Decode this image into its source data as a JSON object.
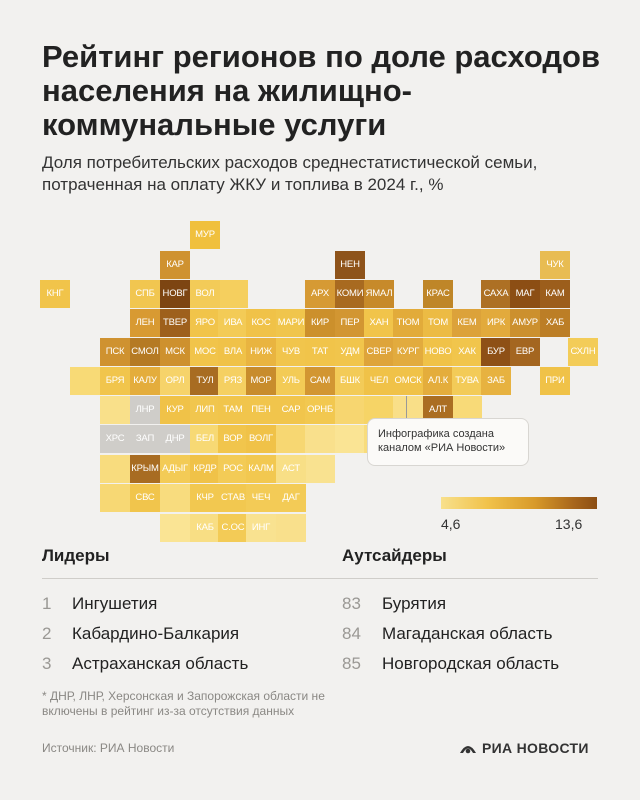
{
  "title": "Рейтинг регионов по доле расходов населения на жилищно-коммунальные услуги",
  "subtitle": "Доля потребительских расходов среднестатистической семьи, потраченная на оплату ЖКУ и топлива в 2024 г., %",
  "credit": "Инфографика создана каналом «РИА Новости»",
  "legend": {
    "min": "4,6",
    "max": "13,6",
    "colors": [
      "#f8e08c",
      "#f1c24a",
      "#d89a2a",
      "#a8661c",
      "#8c4e14"
    ]
  },
  "map_regions": [
    {
      "label": "МУР",
      "color": "#f0c03e"
    },
    {
      "label": "КАР",
      "color": "#cf9230"
    },
    {
      "label": "ЧУК",
      "color": "#e8bc52"
    },
    {
      "label": "НЕН",
      "color": "#8e531a"
    },
    {
      "label": "КНГ",
      "color": "#f1c44a"
    },
    {
      "label": "СПБ",
      "color": "#f1c650"
    },
    {
      "label": "НОВГ",
      "color": "#7d4512"
    },
    {
      "label": "ВОЛ",
      "color": "#f3cb58"
    },
    {
      "label": "АРХ",
      "color": "#d69a34"
    },
    {
      "label": "КОМИ",
      "color": "#a86a20"
    },
    {
      "label": "ЯМАЛ",
      "color": "#c78a2a"
    },
    {
      "label": "КРАС",
      "color": "#bf8628"
    },
    {
      "label": "САХА",
      "color": "#ad7024"
    },
    {
      "label": "МАГ",
      "color": "#8c4e14"
    },
    {
      "label": "КАМ",
      "color": "#9c5e1c"
    },
    {
      "label": "ЛЕН",
      "color": "#d89a32"
    },
    {
      "label": "ТВЕР",
      "color": "#9e601c"
    },
    {
      "label": "ЯРО",
      "color": "#f1c44a"
    },
    {
      "label": "ИВА",
      "color": "#f3cb56"
    },
    {
      "label": "КОС",
      "color": "#f0c248"
    },
    {
      "label": "МАРИ",
      "color": "#f0c54c"
    },
    {
      "label": "КИР",
      "color": "#cc902c"
    },
    {
      "label": "ПЕР",
      "color": "#d29632"
    },
    {
      "label": "ХАН",
      "color": "#f1c44a"
    },
    {
      "label": "ТЮМ",
      "color": "#e2ab3a"
    },
    {
      "label": "ТОМ",
      "color": "#ecbb44"
    },
    {
      "label": "КЕМ",
      "color": "#dca23a"
    },
    {
      "label": "ИРК",
      "color": "#e2aa3c"
    },
    {
      "label": "АМУР",
      "color": "#cc902e"
    },
    {
      "label": "ХАБ",
      "color": "#bc7e26"
    },
    {
      "label": "ПСК",
      "color": "#cf9230"
    },
    {
      "label": "СМОЛ",
      "color": "#b57a24"
    },
    {
      "label": "МСК",
      "color": "#ce912e"
    },
    {
      "label": "МОС",
      "color": "#f1c44a"
    },
    {
      "label": "ВЛА",
      "color": "#f0c248"
    },
    {
      "label": "НИЖ",
      "color": "#e9b440"
    },
    {
      "label": "ЧУВ",
      "color": "#f1c54c"
    },
    {
      "label": "ТАТ",
      "color": "#f1c44a"
    },
    {
      "label": "УДМ",
      "color": "#f1c54c"
    },
    {
      "label": "СВЕР",
      "color": "#dea43a"
    },
    {
      "label": "КУРГ",
      "color": "#e2ab3e"
    },
    {
      "label": "НОВО",
      "color": "#f0c248"
    },
    {
      "label": "ХАК",
      "color": "#f1c54c"
    },
    {
      "label": "БУР",
      "color": "#8e5016"
    },
    {
      "label": "ЕВР",
      "color": "#a46620"
    },
    {
      "label": "СХЛН",
      "color": "#f3cc58"
    },
    {
      "label": "БРЯ",
      "color": "#f1c54c"
    },
    {
      "label": "КАЛУ",
      "color": "#e4ad3c"
    },
    {
      "label": "ОРЛ",
      "color": "#f6d36a"
    },
    {
      "label": "ТУЛ",
      "color": "#a86c22"
    },
    {
      "label": "РЯЗ",
      "color": "#f5d062"
    },
    {
      "label": "МОР",
      "color": "#c88c2c"
    },
    {
      "label": "УЛЬ",
      "color": "#f3cb56"
    },
    {
      "label": "САМ",
      "color": "#d29632"
    },
    {
      "label": "БШК",
      "color": "#f3cb58"
    },
    {
      "label": "ЧЕЛ",
      "color": "#f0c248"
    },
    {
      "label": "ОМСК",
      "color": "#f0c248"
    },
    {
      "label": "АЛ.К",
      "color": "#e4ad3c"
    },
    {
      "label": "ТУВА",
      "color": "#f3cb58"
    },
    {
      "label": "ЗАБ",
      "color": "#e7b240"
    },
    {
      "label": "ПРИ",
      "color": "#f0c248"
    },
    {
      "label": "ЛНР",
      "color": "#cfcdc9"
    },
    {
      "label": "КУР",
      "color": "#f0c248"
    },
    {
      "label": "ЛИП",
      "color": "#f1c64e"
    },
    {
      "label": "ТАМ",
      "color": "#f1c54c"
    },
    {
      "label": "ПЕН",
      "color": "#f1c54c"
    },
    {
      "label": "САР",
      "color": "#f1c54c"
    },
    {
      "label": "ОРНБ",
      "color": "#f2c850"
    },
    {
      "label": "АЛТ",
      "color": "#ab6e22"
    },
    {
      "label": "ХРС",
      "color": "#cfcdc9"
    },
    {
      "label": "ЗАП",
      "color": "#cfcdc9"
    },
    {
      "label": "ДНР",
      "color": "#cfcdc9"
    },
    {
      "label": "БЕЛ",
      "color": "#f7d974"
    },
    {
      "label": "ВОР",
      "color": "#f1c54c"
    },
    {
      "label": "ВОЛГ",
      "color": "#f0c248"
    },
    {
      "label": "КРЫМ",
      "color": "#a86c22"
    },
    {
      "label": "АДЫГ",
      "color": "#f3cb56"
    },
    {
      "label": "КРДР",
      "color": "#f0c248"
    },
    {
      "label": "РОС",
      "color": "#f3cb56"
    },
    {
      "label": "КАЛМ",
      "color": "#f2c850"
    },
    {
      "label": "АСТ",
      "color": "#f8df86"
    },
    {
      "label": "СВС",
      "color": "#f1c54c"
    },
    {
      "label": "КЧР",
      "color": "#f2c850"
    },
    {
      "label": "СТАВ",
      "color": "#f2c850"
    },
    {
      "label": "ЧЕЧ",
      "color": "#f3cb56"
    },
    {
      "label": "ДАГ",
      "color": "#f3cb56"
    },
    {
      "label": "КАБ",
      "color": "#f8de84"
    },
    {
      "label": "С.ОС",
      "color": "#f3cb56"
    },
    {
      "label": "ИНГ",
      "color": "#f9e290"
    }
  ],
  "filler_color": "#f7d56c",
  "leaders": {
    "heading": "Лидеры",
    "items": [
      {
        "rank": "1",
        "name": "Ингушетия"
      },
      {
        "rank": "2",
        "name": "Кабардино-Балкария"
      },
      {
        "rank": "3",
        "name": "Астраханская область"
      }
    ]
  },
  "outsiders": {
    "heading": "Аутсайдеры",
    "items": [
      {
        "rank": "83",
        "name": "Бурятия"
      },
      {
        "rank": "84",
        "name": "Магаданская область"
      },
      {
        "rank": "85",
        "name": "Новгородская область"
      }
    ]
  },
  "footnote": "* ДНР, ЛНР, Херсонская и Запорожская области не включены в рейтинг из-за отсутствия данных",
  "source": "Источник: РИА Новости",
  "logo": "РИА НОВОСТИ"
}
